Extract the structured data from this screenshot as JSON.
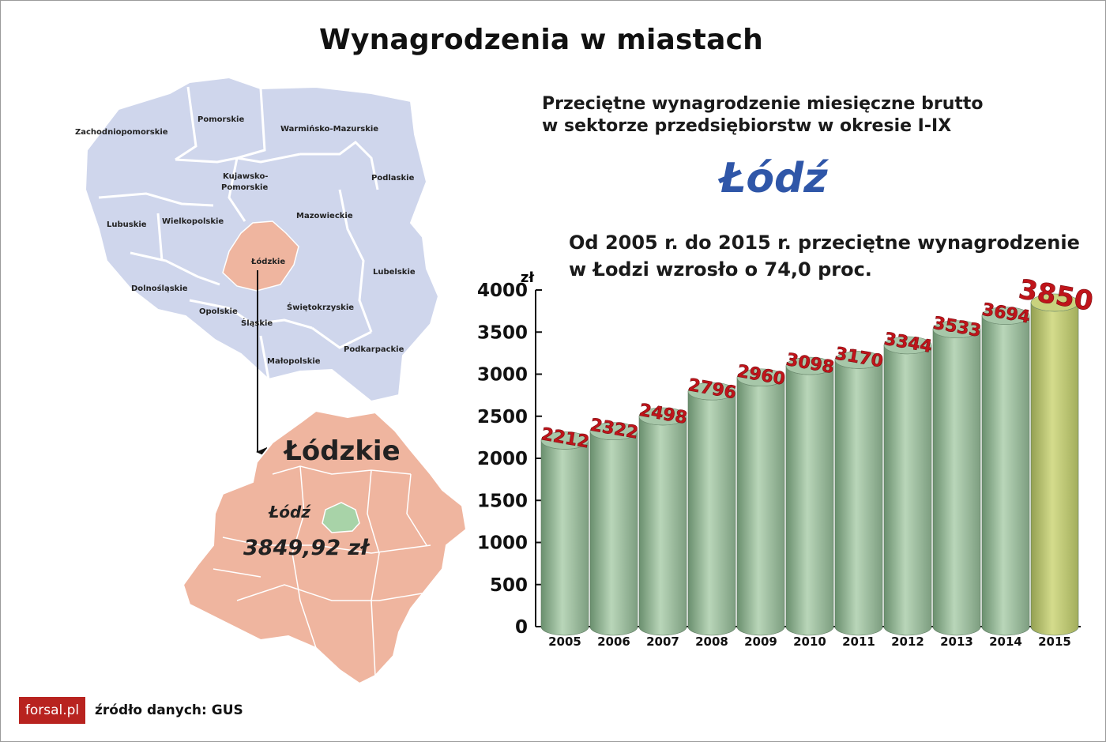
{
  "title": "Wynagrodzenia w miastach",
  "subtitle_line1": "Przeciętne wynagrodzenie miesięczne brutto",
  "subtitle_line2": "w sektorze przedsiębiorstw w okresie I-IX",
  "city": "Łódź",
  "note_line1": "Od 2005 r. do 2015 r. przeciętne wynagrodzenie",
  "note_line2": "w Łodzi wzrosło o 74,0 proc.",
  "map": {
    "regions": [
      "Zachodniopomorskie",
      "Pomorskie",
      "Warmińsko-Mazurskie",
      "Kujawsko-",
      "Pomorskie",
      "Podlaskie",
      "Lubuskie",
      "Wielkopolskie",
      "Mazowieckie",
      "Łódzkie",
      "Lubelskie",
      "Dolnośląskie",
      "Opolskie",
      "Świętokrzyskie",
      "Śląskie",
      "Podkarpackie",
      "Małopolskie"
    ],
    "voivodeship": "Łódzkie",
    "city_label": "Łódź",
    "city_value": "3849,92 zł",
    "colors": {
      "country": "#cfd6ec",
      "voivodeship": "#efb59f",
      "city": "#a8d3a8"
    }
  },
  "chart_data": {
    "type": "bar",
    "style": "3d-cylinder",
    "categories": [
      "2005",
      "2006",
      "2007",
      "2008",
      "2009",
      "2010",
      "2011",
      "2012",
      "2013",
      "2014",
      "2015"
    ],
    "values": [
      2212,
      2322,
      2498,
      2796,
      2960,
      3098,
      3170,
      3344,
      3533,
      3694,
      3850
    ],
    "value_labels": [
      "2212",
      "2322",
      "2498",
      "2796",
      "2960",
      "3098",
      "3170",
      "3344",
      "3533",
      "3694",
      "3850"
    ],
    "y_unit": "zł",
    "ylim": [
      0,
      4000
    ],
    "yticks": [
      "0",
      "500",
      "1000",
      "1500",
      "2000",
      "2500",
      "3000",
      "3500",
      "4000"
    ],
    "ytick_values": [
      0,
      500,
      1000,
      1500,
      2000,
      2500,
      3000,
      3500,
      4000
    ],
    "grid": false,
    "colors": {
      "bar": "#8fb592",
      "highlight": "#b8c26d",
      "label": "#c0141a"
    }
  },
  "footer": {
    "logo": "forsal.pl",
    "source": "źródło danych: GUS"
  }
}
